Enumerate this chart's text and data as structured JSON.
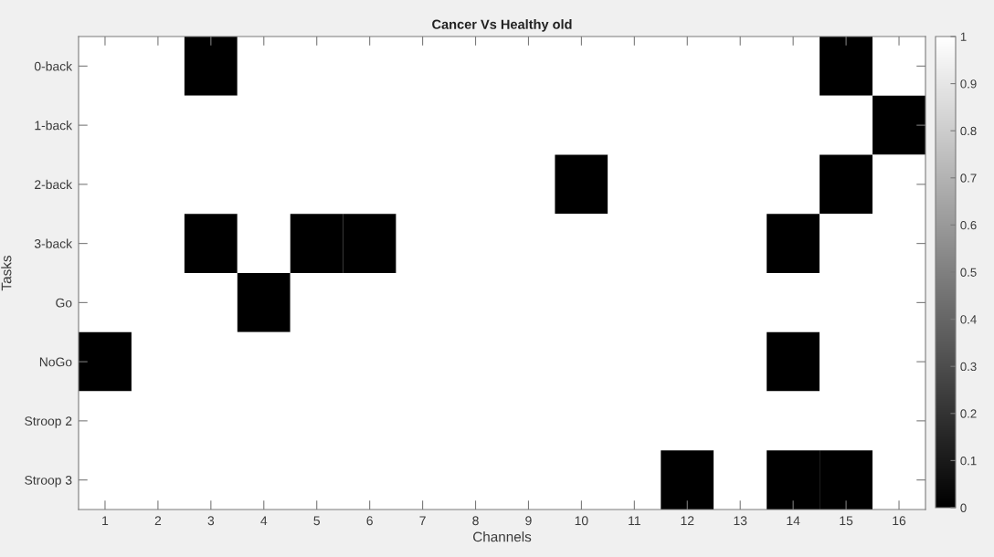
{
  "chart_data": {
    "type": "heatmap",
    "title": "Cancer Vs Healthy old",
    "xlabel": "Channels",
    "ylabel": "Tasks",
    "categories": [
      "1",
      "2",
      "3",
      "4",
      "5",
      "6",
      "7",
      "8",
      "9",
      "10",
      "11",
      "12",
      "13",
      "14",
      "15",
      "16"
    ],
    "y_categories": [
      "0-back",
      "1-back",
      "2-back",
      "3-back",
      "Go",
      "NoGo",
      "Stroop 2",
      "Stroop 3"
    ],
    "cells": [
      [
        1,
        1,
        0,
        1,
        1,
        1,
        1,
        1,
        1,
        1,
        1,
        1,
        1,
        1,
        0,
        1
      ],
      [
        1,
        1,
        1,
        1,
        1,
        1,
        1,
        1,
        1,
        1,
        1,
        1,
        1,
        1,
        1,
        0
      ],
      [
        1,
        1,
        1,
        1,
        1,
        1,
        1,
        1,
        1,
        0,
        1,
        1,
        1,
        1,
        0,
        1
      ],
      [
        1,
        1,
        0,
        1,
        0,
        0,
        1,
        1,
        1,
        1,
        1,
        1,
        1,
        0,
        1,
        1
      ],
      [
        1,
        1,
        1,
        0,
        1,
        1,
        1,
        1,
        1,
        1,
        1,
        1,
        1,
        1,
        1,
        1
      ],
      [
        0,
        1,
        1,
        1,
        1,
        1,
        1,
        1,
        1,
        1,
        1,
        1,
        1,
        0,
        1,
        1
      ],
      [
        1,
        1,
        1,
        1,
        1,
        1,
        1,
        1,
        1,
        1,
        1,
        1,
        1,
        1,
        1,
        1
      ],
      [
        1,
        1,
        1,
        1,
        1,
        1,
        1,
        1,
        1,
        1,
        1,
        0,
        1,
        0,
        0,
        1
      ]
    ],
    "clim": [
      0,
      1
    ],
    "cticks": [
      0,
      0.1,
      0.2,
      0.3,
      0.4,
      0.5,
      0.6,
      0.7,
      0.8,
      0.9,
      1
    ],
    "grid": false
  }
}
